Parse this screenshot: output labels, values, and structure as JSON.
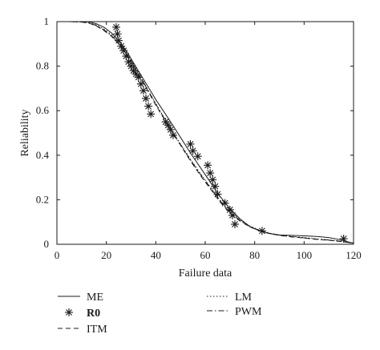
{
  "chart_data": {
    "type": "line",
    "title": "",
    "xlabel": "Failure data",
    "ylabel": "Reliability",
    "xlim": [
      0,
      120
    ],
    "ylim": [
      0,
      1
    ],
    "xticks": [
      0,
      20,
      40,
      60,
      80,
      100,
      120
    ],
    "yticks": [
      0,
      0.2,
      0.4,
      0.6,
      0.8,
      1
    ],
    "ytick_labels": [
      "0",
      "0.2",
      "0.4",
      "0.6",
      "0.8",
      "1"
    ],
    "grid": false,
    "legend_placement": "below",
    "series": [
      {
        "name": "ME",
        "style": "solid",
        "x": [
          0,
          5,
          10,
          13,
          16,
          19,
          22,
          25,
          28,
          31,
          34,
          37,
          40,
          43,
          46,
          50,
          54,
          58,
          62,
          66,
          70,
          74,
          78,
          82,
          86,
          90,
          95,
          100,
          105,
          110,
          115,
          118,
          120
        ],
        "y": [
          1,
          1,
          1,
          0.999,
          0.99,
          0.975,
          0.95,
          0.915,
          0.87,
          0.815,
          0.76,
          0.705,
          0.65,
          0.6,
          0.55,
          0.48,
          0.41,
          0.345,
          0.28,
          0.215,
          0.16,
          0.115,
          0.08,
          0.06,
          0.048,
          0.042,
          0.04,
          0.038,
          0.035,
          0.03,
          0.02,
          0.01,
          0.005
        ]
      },
      {
        "name": "R0",
        "style": "markers",
        "marker": "asterisk",
        "x": [
          24,
          24.5,
          25,
          26,
          27,
          28,
          29,
          30,
          31,
          32,
          33,
          34,
          35,
          36,
          37,
          38,
          44,
          45,
          46,
          47,
          54,
          55,
          57,
          61,
          62,
          63,
          64,
          65,
          68,
          70,
          71,
          72,
          83,
          116
        ],
        "y": [
          0.975,
          0.945,
          0.915,
          0.89,
          0.87,
          0.845,
          0.82,
          0.8,
          0.78,
          0.765,
          0.75,
          0.72,
          0.69,
          0.655,
          0.62,
          0.585,
          0.55,
          0.535,
          0.515,
          0.49,
          0.45,
          0.42,
          0.395,
          0.355,
          0.32,
          0.29,
          0.26,
          0.225,
          0.185,
          0.155,
          0.13,
          0.09,
          0.06,
          0.025
        ]
      },
      {
        "name": "ITM",
        "style": "dashed",
        "x": [
          0,
          5,
          10,
          13,
          16,
          19,
          22,
          25,
          28,
          31,
          34,
          37,
          40,
          43,
          46,
          50,
          54,
          58,
          62,
          66,
          70,
          74,
          78,
          82,
          86,
          90,
          95,
          100,
          105,
          110,
          115,
          118,
          120
        ],
        "y": [
          1,
          1,
          0.998,
          0.993,
          0.98,
          0.96,
          0.935,
          0.9,
          0.855,
          0.8,
          0.745,
          0.685,
          0.625,
          0.57,
          0.515,
          0.445,
          0.375,
          0.31,
          0.25,
          0.19,
          0.14,
          0.105,
          0.078,
          0.06,
          0.048,
          0.04,
          0.033,
          0.028,
          0.022,
          0.018,
          0.012,
          0.008,
          0.005
        ]
      },
      {
        "name": "LM",
        "style": "dotted",
        "x": [
          0,
          5,
          10,
          13,
          16,
          19,
          22,
          25,
          28,
          31,
          34,
          37,
          40,
          43,
          46,
          50,
          54,
          58,
          62,
          66,
          70,
          74,
          78,
          82,
          86,
          90,
          95,
          100,
          105,
          110,
          115,
          118,
          120
        ],
        "y": [
          1,
          1,
          0.999,
          0.995,
          0.985,
          0.967,
          0.943,
          0.908,
          0.862,
          0.807,
          0.75,
          0.69,
          0.632,
          0.575,
          0.52,
          0.45,
          0.382,
          0.318,
          0.258,
          0.198,
          0.147,
          0.11,
          0.082,
          0.063,
          0.05,
          0.042,
          0.035,
          0.03,
          0.024,
          0.02,
          0.014,
          0.009,
          0.006
        ]
      },
      {
        "name": "PWM",
        "style": "dashdot",
        "x": [
          0,
          5,
          10,
          13,
          16,
          19,
          22,
          25,
          28,
          31,
          34,
          37,
          40,
          43,
          46,
          50,
          54,
          58,
          62,
          66,
          70,
          74,
          78,
          82,
          86,
          90,
          95,
          100,
          105,
          110,
          115,
          118,
          120
        ],
        "y": [
          1,
          1,
          0.998,
          0.994,
          0.982,
          0.963,
          0.938,
          0.903,
          0.858,
          0.803,
          0.747,
          0.688,
          0.63,
          0.573,
          0.518,
          0.448,
          0.379,
          0.315,
          0.255,
          0.195,
          0.145,
          0.108,
          0.08,
          0.062,
          0.049,
          0.041,
          0.034,
          0.029,
          0.023,
          0.019,
          0.013,
          0.008,
          0.005
        ]
      }
    ]
  }
}
